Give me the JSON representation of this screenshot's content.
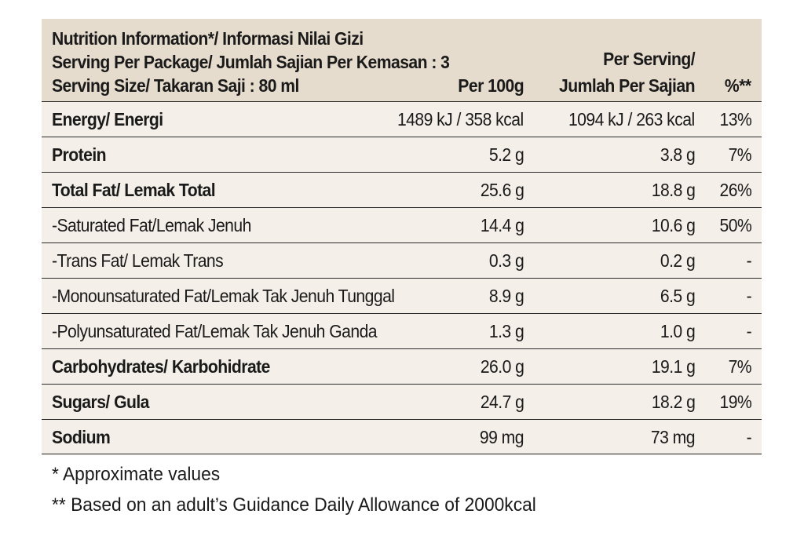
{
  "header": {
    "title": "Nutrition Information*/  Informasi Nilai Gizi",
    "serving_per_package": "Serving Per Package/ Jumlah Sajian Per Kemasan : 3",
    "serving_size": "Serving Size/ Takaran Saji : 80 ml",
    "col_per100": "Per 100g",
    "col_per_serving_1": "Per Serving/",
    "col_per_serving_2": "Jumlah Per Sajian",
    "col_pct": "%**"
  },
  "rows": [
    {
      "name": "Energy/ Energi",
      "per100": "1489 kJ / 358 kcal",
      "per_serving": "1094 kJ / 263 kcal",
      "pct": "13%",
      "bold": true
    },
    {
      "name": "Protein",
      "per100": "5.2 g",
      "per_serving": "3.8 g",
      "pct": "7%",
      "bold": true
    },
    {
      "name": "Total Fat/ Lemak Total",
      "per100": "25.6 g",
      "per_serving": "18.8 g",
      "pct": "26%",
      "bold": true
    },
    {
      "name": "-Saturated Fat/Lemak Jenuh",
      "per100": "14.4 g",
      "per_serving": "10.6 g",
      "pct": "50%",
      "bold": false
    },
    {
      "name": "-Trans Fat/ Lemak Trans",
      "per100": "0.3 g",
      "per_serving": "0.2 g",
      "pct": "-",
      "bold": false
    },
    {
      "name": "-Monounsaturated Fat/Lemak Tak Jenuh Tunggal",
      "per100": "8.9 g",
      "per_serving": "6.5 g",
      "pct": "-",
      "bold": false
    },
    {
      "name": "-Polyunsaturated Fat/Lemak Tak Jenuh Ganda",
      "per100": "1.3 g",
      "per_serving": "1.0 g",
      "pct": "-",
      "bold": false
    },
    {
      "name": "Carbohydrates/ Karbohidrate",
      "per100": "26.0 g",
      "per_serving": "19.1 g",
      "pct": "7%",
      "bold": true
    },
    {
      "name": "Sugars/ Gula",
      "per100": "24.7 g",
      "per_serving": "18.2 g",
      "pct": "19%",
      "bold": true
    },
    {
      "name": "Sodium",
      "per100": "99 mg",
      "per_serving": "73 mg",
      "pct": "-",
      "bold": true
    }
  ],
  "footnotes": {
    "approx": "* Approximate values",
    "gda": "** Based on an adult’s  Guidance Daily Allowance of 2000kcal"
  },
  "colors": {
    "header_bg": "#e6dccd",
    "body_bg": "#f4efe8",
    "rule": "#2a2a2a"
  }
}
